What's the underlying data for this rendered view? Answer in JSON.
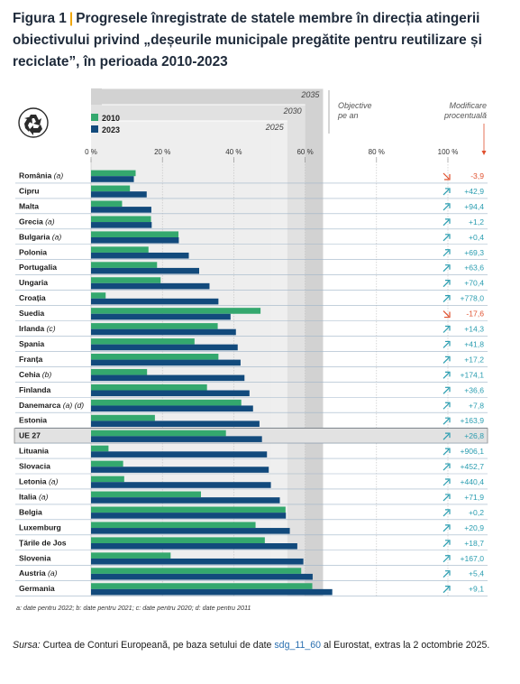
{
  "title": {
    "figure": "Figura 1",
    "separator": "|",
    "text": "Progresele înregistrate de statele membre în direcția atingerii obiectivului privind „deșeurile municipale pregătite pentru reutilizare și reciclate”, în perioada 2010-2023"
  },
  "colors": {
    "y2010": "#34a86e",
    "y2023": "#124a7c",
    "up": "#2a9db0",
    "down": "#e0502e",
    "ue_highlight": "#e2e2e2",
    "gray_bands": [
      "#d2d2d2",
      "#e1e1e1",
      "#eeeeee"
    ]
  },
  "legend": {
    "icon": "recycle-icon",
    "items": [
      {
        "label": "2010",
        "color": "#34a86e"
      },
      {
        "label": "2023",
        "color": "#124a7c"
      }
    ]
  },
  "chart_data": {
    "type": "bar",
    "orientation": "horizontal",
    "xlim": [
      0,
      100
    ],
    "ticks": [
      0,
      20,
      40,
      60,
      80,
      100
    ],
    "tick_labels": [
      "0 %",
      "20 %",
      "40 %",
      "60 %",
      "80 %",
      "100 %"
    ],
    "targets": [
      {
        "year": "2025",
        "value": 55
      },
      {
        "year": "2030",
        "value": 60
      },
      {
        "year": "2035",
        "value": 65
      }
    ],
    "targets_label": "Objective pe an",
    "change_label": "Modificare procentuală",
    "highlight_category": "UE 27",
    "categories": [
      {
        "name": "România",
        "note": "(a)",
        "v2010": 12.5,
        "v2023": 12.0,
        "change": "-3,9",
        "dir": "down"
      },
      {
        "name": "Cipru",
        "note": "",
        "v2010": 10.9,
        "v2023": 15.6,
        "change": "+42,9",
        "dir": "up"
      },
      {
        "name": "Malta",
        "note": "",
        "v2010": 8.7,
        "v2023": 16.9,
        "change": "+94,4",
        "dir": "up"
      },
      {
        "name": "Grecia",
        "note": "(a)",
        "v2010": 16.8,
        "v2023": 17.0,
        "change": "+1,2",
        "dir": "up"
      },
      {
        "name": "Bulgaria",
        "note": "(a)",
        "v2010": 24.5,
        "v2023": 24.6,
        "change": "+0,4",
        "dir": "up"
      },
      {
        "name": "Polonia",
        "note": "",
        "v2010": 16.1,
        "v2023": 27.4,
        "change": "+69,3",
        "dir": "up"
      },
      {
        "name": "Portugalia",
        "note": "",
        "v2010": 18.5,
        "v2023": 30.3,
        "change": "+63,6",
        "dir": "up"
      },
      {
        "name": "Ungaria",
        "note": "",
        "v2010": 19.5,
        "v2023": 33.2,
        "change": "+70,4",
        "dir": "up"
      },
      {
        "name": "Croația",
        "note": "",
        "v2010": 4.1,
        "v2023": 35.7,
        "change": "+778,0",
        "dir": "up"
      },
      {
        "name": "Suedia",
        "note": "",
        "v2010": 47.5,
        "v2023": 39.1,
        "change": "-17,6",
        "dir": "down"
      },
      {
        "name": "Irlanda",
        "note": "(c)",
        "v2010": 35.5,
        "v2023": 40.6,
        "change": "+14,3",
        "dir": "up"
      },
      {
        "name": "Spania",
        "note": "",
        "v2010": 29.0,
        "v2023": 41.1,
        "change": "+41,8",
        "dir": "up"
      },
      {
        "name": "Franța",
        "note": "",
        "v2010": 35.7,
        "v2023": 41.9,
        "change": "+17,2",
        "dir": "up"
      },
      {
        "name": "Cehia",
        "note": "(b)",
        "v2010": 15.7,
        "v2023": 43.0,
        "change": "+174,1",
        "dir": "up"
      },
      {
        "name": "Finlanda",
        "note": "",
        "v2010": 32.5,
        "v2023": 44.4,
        "change": "+36,6",
        "dir": "up"
      },
      {
        "name": "Danemarca",
        "note": "(a) (d)",
        "v2010": 42.1,
        "v2023": 45.4,
        "change": "+7,8",
        "dir": "up"
      },
      {
        "name": "Estonia",
        "note": "",
        "v2010": 17.9,
        "v2023": 47.2,
        "change": "+163,9",
        "dir": "up"
      },
      {
        "name": "UE 27",
        "note": "",
        "v2010": 37.8,
        "v2023": 47.9,
        "change": "+26,8",
        "dir": "up"
      },
      {
        "name": "Lituania",
        "note": "",
        "v2010": 4.9,
        "v2023": 49.3,
        "change": "+906,1",
        "dir": "up"
      },
      {
        "name": "Slovacia",
        "note": "",
        "v2010": 9.0,
        "v2023": 49.8,
        "change": "+452,7",
        "dir": "up"
      },
      {
        "name": "Letonia",
        "note": "(a)",
        "v2010": 9.3,
        "v2023": 50.4,
        "change": "+440,4",
        "dir": "up"
      },
      {
        "name": "Italia",
        "note": "(a)",
        "v2010": 30.8,
        "v2023": 52.9,
        "change": "+71,9",
        "dir": "up"
      },
      {
        "name": "Belgia",
        "note": "",
        "v2010": 54.5,
        "v2023": 54.6,
        "change": "+0,2",
        "dir": "up"
      },
      {
        "name": "Luxemburg",
        "note": "",
        "v2010": 46.1,
        "v2023": 55.7,
        "change": "+20,9",
        "dir": "up"
      },
      {
        "name": "Țările de Jos",
        "note": "",
        "v2010": 48.7,
        "v2023": 57.8,
        "change": "+18,7",
        "dir": "up"
      },
      {
        "name": "Slovenia",
        "note": "",
        "v2010": 22.3,
        "v2023": 59.5,
        "change": "+167,0",
        "dir": "up"
      },
      {
        "name": "Austria",
        "note": "(a)",
        "v2010": 58.9,
        "v2023": 62.1,
        "change": "+5,4",
        "dir": "up"
      },
      {
        "name": "Germania",
        "note": "",
        "v2010": 62.0,
        "v2023": 67.6,
        "change": "+9,1",
        "dir": "up"
      }
    ]
  },
  "footnote": "a: date pentru 2022; b: date pentru 2021; c: date pentru 2020; d: date pentru 2011",
  "source": {
    "label": "Sursa:",
    "text_before": "Curtea de Conturi Europeană, pe baza setului de date",
    "link": "sdg_11_60",
    "text_after": "al Eurostat, extras la 2 octombrie 2025."
  }
}
